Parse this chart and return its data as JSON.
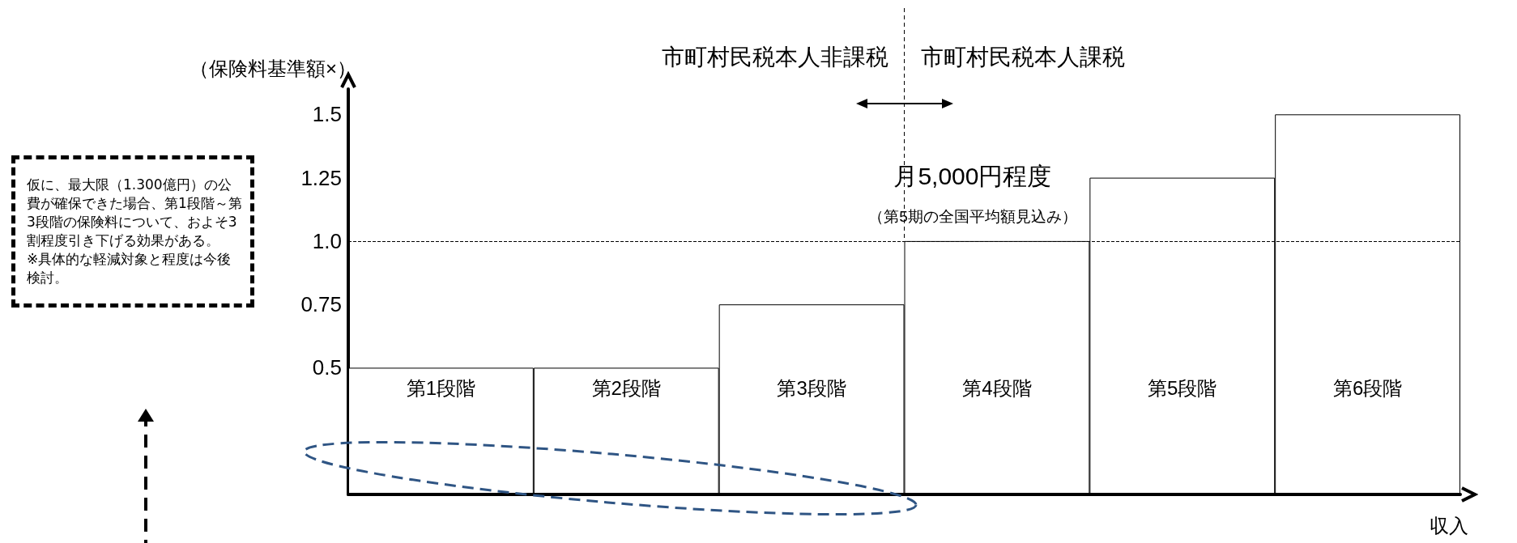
{
  "chart_data": {
    "type": "bar",
    "ylabel": "（保険料基準額×）",
    "xlabel": "収入",
    "categories": [
      "第1段階",
      "第2段階",
      "第3段階",
      "第4段階",
      "第5段階",
      "第6段階"
    ],
    "values": [
      0.5,
      0.5,
      0.75,
      1.0,
      1.25,
      1.5
    ],
    "color": "#ffffff",
    "ylim": [
      0,
      1.6
    ],
    "yticks": [
      0.5,
      0.75,
      {
        "value": 1,
        "label": "1.0"
      },
      1.25,
      1.5
    ],
    "grid": false,
    "ref_lines": [
      {
        "axis": "y",
        "value": 1,
        "label": null,
        "line_style": "dashed",
        "color": "#000000"
      }
    ],
    "annotations": [
      "仮に、最大限（1.300億円）の公費が確保できた場合、第1段階～第3段階の保険料について、およそ3割程度引き下げる効果がある。",
      "※具体的な軽減対象と程度は今後検討。",
      "市町村民税本人非課税",
      "市町村民税本人課税",
      {
        "text": "月5,000円程度",
        "x": "第4段階",
        "y": 1.0
      },
      {
        "text": "（第5期の全国平均額見込み）",
        "x": "第4段階",
        "y": 1.0
      }
    ]
  }
}
